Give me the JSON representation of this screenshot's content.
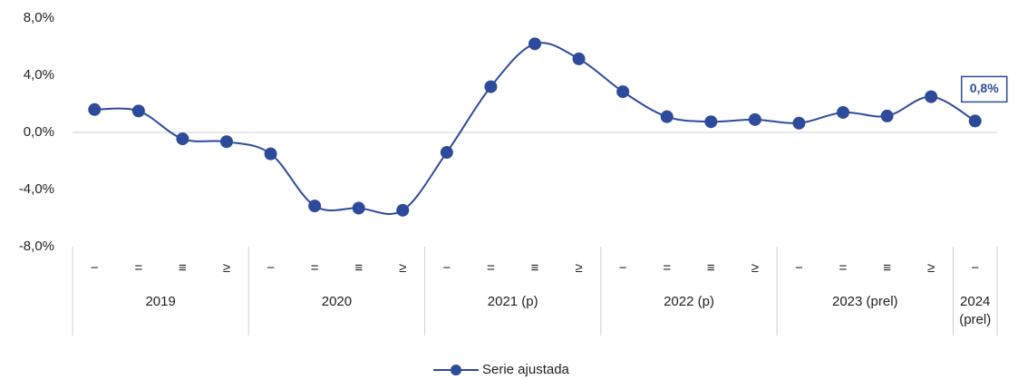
{
  "chart_data": {
    "type": "line",
    "categories": [
      "−",
      "=",
      "≡",
      "≥",
      "−",
      "=",
      "≡",
      "≥",
      "−",
      "=",
      "≡",
      "≥",
      "−",
      "=",
      "≡",
      "≥",
      "−",
      "=",
      "≡",
      "≥",
      "−"
    ],
    "groups": [
      "2019",
      "2019",
      "2019",
      "2019",
      "2020",
      "2020",
      "2020",
      "2020",
      "2021 (p)",
      "2021 (p)",
      "2021 (p)",
      "2021 (p)",
      "2022 (p)",
      "2022 (p)",
      "2022 (p)",
      "2022 (p)",
      "2023 (prel)",
      "2023 (prel)",
      "2023 (prel)",
      "2023 (prel)",
      "2024\n(prel)"
    ],
    "series": [
      {
        "name": "Serie ajustada",
        "color": "#2e4b9b",
        "values": [
          1.6,
          1.5,
          -0.45,
          -0.65,
          -1.5,
          -5.15,
          -5.3,
          -5.45,
          -1.4,
          3.2,
          6.2,
          5.15,
          2.85,
          1.1,
          0.75,
          0.9,
          0.65,
          1.4,
          1.15,
          2.5,
          0.8
        ],
        "value_labels": [
          null,
          null,
          null,
          null,
          null,
          null,
          null,
          null,
          null,
          null,
          null,
          null,
          null,
          null,
          null,
          null,
          null,
          null,
          null,
          null,
          "0,8%"
        ]
      }
    ],
    "ylim": [
      -8,
      8
    ],
    "yticks": [
      {
        "value": -8,
        "label": "-8,0%"
      },
      {
        "value": -4,
        "label": "-4,0%"
      },
      {
        "value": 0,
        "label": "0,0%"
      },
      {
        "value": 4,
        "label": "4,0%"
      },
      {
        "value": 8,
        "label": "8,0%"
      }
    ],
    "grid": false,
    "legend": "bottom"
  }
}
